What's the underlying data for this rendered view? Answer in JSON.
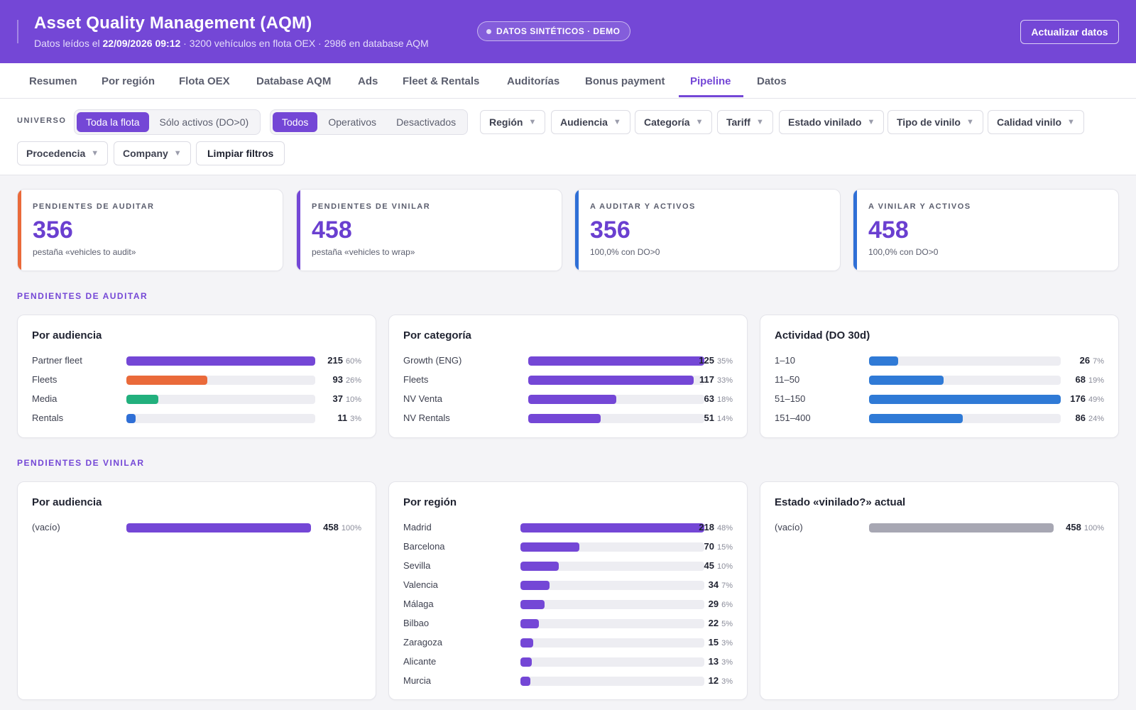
{
  "header": {
    "title": "Asset Quality Management (AQM)",
    "subtitle_prefix": "Datos leídos el",
    "subtitle_date": "22/09/2026 09:12",
    "subtitle_suffix": "· 3200 vehículos en flota OEX · 2986 en database AQM",
    "badge": "DATOS SINTÉTICOS · DEMO",
    "refresh_label": "Actualizar datos"
  },
  "tabs": [
    {
      "label": "Resumen"
    },
    {
      "label": "Por región"
    },
    {
      "label": "Flota OEX"
    },
    {
      "label": "Database AQM"
    },
    {
      "label": "Ads"
    },
    {
      "label": "Fleet & Rentals"
    },
    {
      "label": "Auditorías"
    },
    {
      "label": "Bonus payment"
    },
    {
      "label": "Pipeline",
      "active": true
    },
    {
      "label": "Datos"
    }
  ],
  "filters": {
    "universe_label": "UNIVERSO",
    "universe_options": [
      "Toda la flota",
      "Sólo activos (DO>0)"
    ],
    "universe_selected": "Toda la flota",
    "status_options": [
      "Todos",
      "Operativos",
      "Desactivados"
    ],
    "status_selected": "Todos",
    "dropdowns": [
      "Región",
      "Audiencia",
      "Categoría",
      "Tariff",
      "Estado vinilado",
      "Tipo de vinilo",
      "Calidad vinilo",
      "Procedencia",
      "Company"
    ],
    "clear_label": "Limpiar filtros"
  },
  "kpis": [
    {
      "label": "PENDIENTES DE AUDITAR",
      "value": "356",
      "note": "pestaña «vehicles to audit»",
      "color": "#ea6a3a"
    },
    {
      "label": "PENDIENTES DE VINILAR",
      "value": "458",
      "note": "pestaña «vehicles to wrap»",
      "color": "#7447d6"
    },
    {
      "label": "A AUDITAR Y ACTIVOS",
      "value": "356",
      "note": "100,0% con DO>0",
      "color": "#2f6fd6"
    },
    {
      "label": "A VINILAR Y ACTIVOS",
      "value": "458",
      "note": "100,0% con DO>0",
      "color": "#2f6fd6"
    }
  ],
  "sections": {
    "audit": "PENDIENTES DE AUDITAR",
    "wrap": "PENDIENTES DE VINILAR"
  },
  "panels": [
    {
      "title": "Por audiencia",
      "rows": [
        {
          "label": "Partner fleet",
          "value": "215",
          "pct": "60%",
          "fill": 1.0,
          "color": "#7447d6"
        },
        {
          "label": "Fleets",
          "value": "93",
          "pct": "26%",
          "fill": 0.43,
          "color": "#ea6a3a"
        },
        {
          "label": "Media",
          "value": "37",
          "pct": "10%",
          "fill": 0.17,
          "color": "#22b07d"
        },
        {
          "label": "Rentals",
          "value": "11",
          "pct": "3%",
          "fill": 0.05,
          "color": "#2f6fd6"
        }
      ]
    },
    {
      "title": "Por categoría",
      "rows": [
        {
          "label": "Growth (ENG)",
          "value": "125",
          "pct": "35%",
          "fill": 1.0,
          "color": "#7447d6"
        },
        {
          "label": "Fleets",
          "value": "117",
          "pct": "33%",
          "fill": 0.94,
          "color": "#7447d6"
        },
        {
          "label": "NV Venta",
          "value": "63",
          "pct": "18%",
          "fill": 0.5,
          "color": "#7447d6"
        },
        {
          "label": "NV Rentals",
          "value": "51",
          "pct": "14%",
          "fill": 0.41,
          "color": "#7447d6"
        }
      ]
    },
    {
      "title": "Actividad (DO 30d)",
      "rows": [
        {
          "label": "1–10",
          "value": "26",
          "pct": "7%",
          "fill": 0.15,
          "color": "#2f7ad6"
        },
        {
          "label": "11–50",
          "value": "68",
          "pct": "19%",
          "fill": 0.39,
          "color": "#2f7ad6"
        },
        {
          "label": "51–150",
          "value": "176",
          "pct": "49%",
          "fill": 1.0,
          "color": "#2f7ad6"
        },
        {
          "label": "151–400",
          "value": "86",
          "pct": "24%",
          "fill": 0.49,
          "color": "#2f7ad6"
        }
      ]
    },
    {
      "title": "Por audiencia",
      "rows": [
        {
          "label": "(vacío)",
          "value": "458",
          "pct": "100%",
          "fill": 1.0,
          "color": "#7447d6"
        }
      ]
    },
    {
      "title": "Por región",
      "rows": [
        {
          "label": "Madrid",
          "value": "218",
          "pct": "48%",
          "fill": 1.0,
          "color": "#7447d6"
        },
        {
          "label": "Barcelona",
          "value": "70",
          "pct": "15%",
          "fill": 0.32,
          "color": "#7447d6"
        },
        {
          "label": "Sevilla",
          "value": "45",
          "pct": "10%",
          "fill": 0.21,
          "color": "#7447d6"
        },
        {
          "label": "Valencia",
          "value": "34",
          "pct": "7%",
          "fill": 0.16,
          "color": "#7447d6"
        },
        {
          "label": "Málaga",
          "value": "29",
          "pct": "6%",
          "fill": 0.13,
          "color": "#7447d6"
        },
        {
          "label": "Bilbao",
          "value": "22",
          "pct": "5%",
          "fill": 0.1,
          "color": "#7447d6"
        },
        {
          "label": "Zaragoza",
          "value": "15",
          "pct": "3%",
          "fill": 0.07,
          "color": "#7447d6"
        },
        {
          "label": "Alicante",
          "value": "13",
          "pct": "3%",
          "fill": 0.06,
          "color": "#7447d6"
        },
        {
          "label": "Murcia",
          "value": "12",
          "pct": "3%",
          "fill": 0.055,
          "color": "#7447d6"
        }
      ]
    },
    {
      "title": "Estado «vinilado?» actual",
      "rows": [
        {
          "label": "(vacío)",
          "value": "458",
          "pct": "100%",
          "fill": 1.0,
          "color": "#a7a7b3"
        }
      ]
    }
  ]
}
